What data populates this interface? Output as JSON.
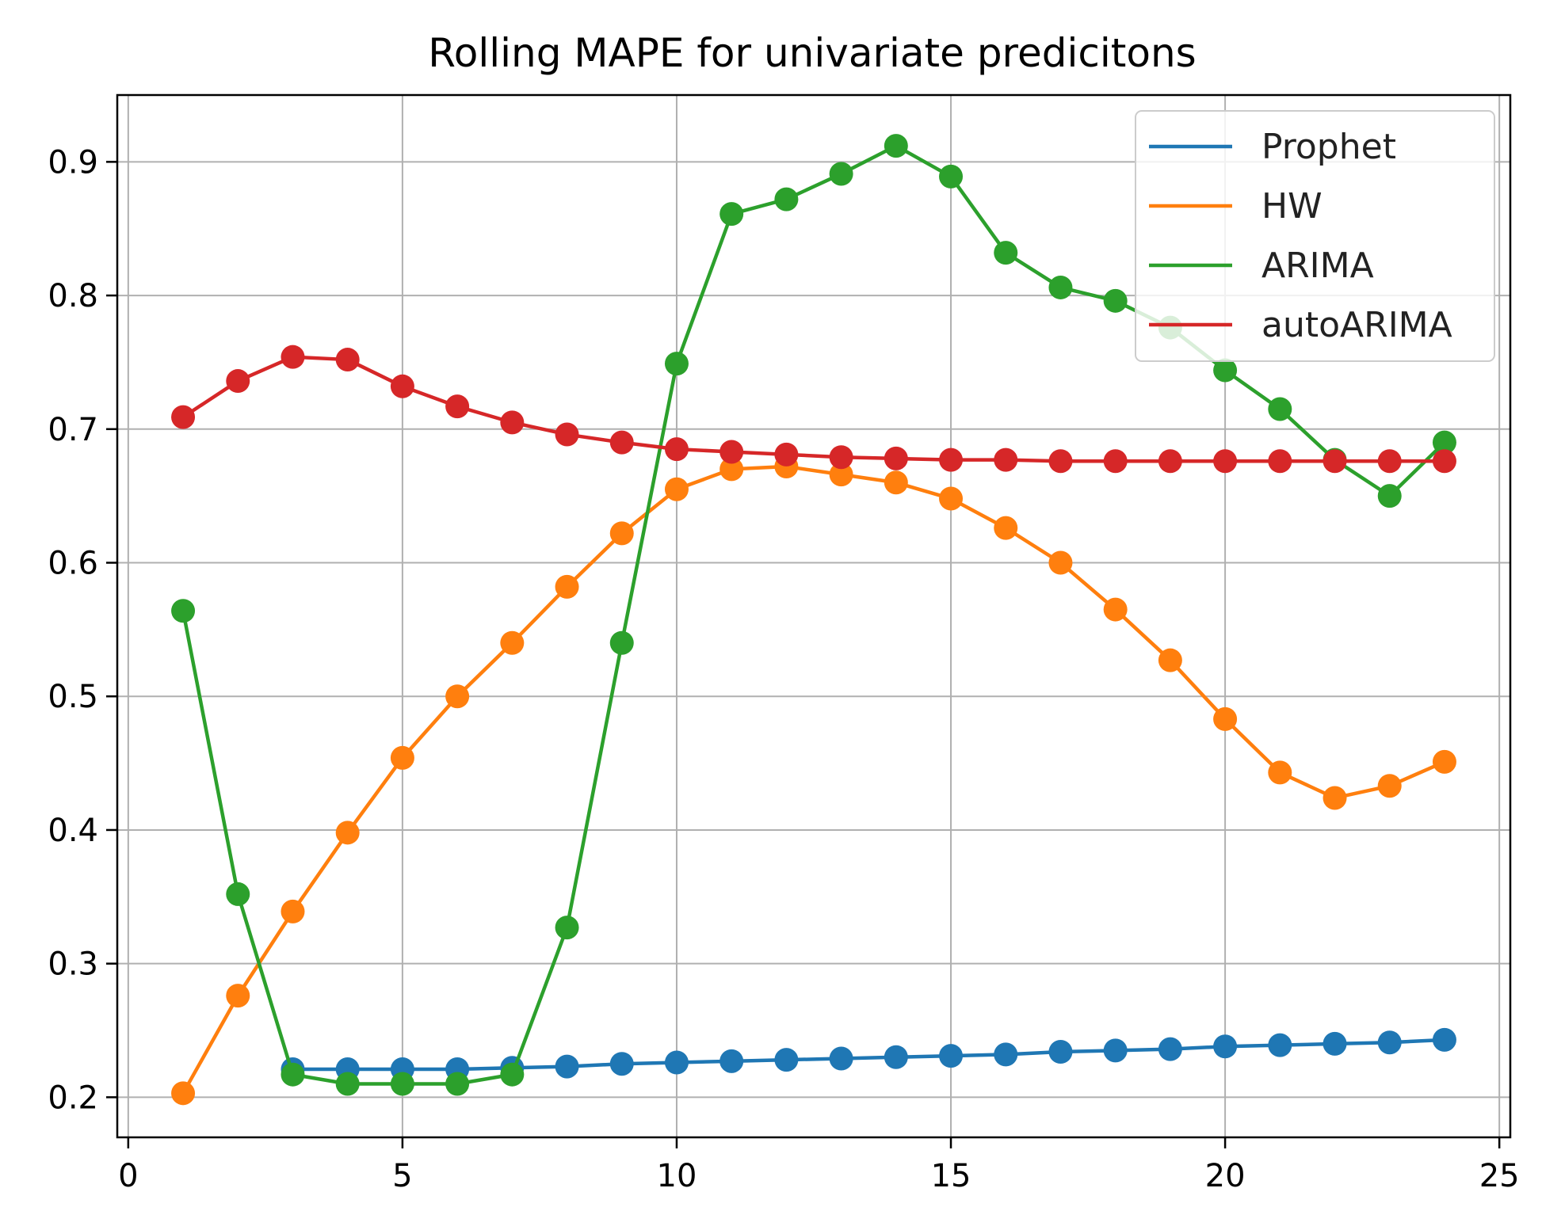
{
  "chart_data": {
    "type": "line",
    "title": "Rolling MAPE for univariate predicitons",
    "xlabel": "",
    "ylabel": "",
    "xlim": [
      -0.2,
      25.2
    ],
    "ylim": [
      0.17,
      0.95
    ],
    "xticks": [
      0,
      5,
      10,
      15,
      20,
      25
    ],
    "xtick_labels": [
      "0",
      "5",
      "10",
      "15",
      "20",
      "25"
    ],
    "yticks": [
      0.2,
      0.3,
      0.4,
      0.5,
      0.6,
      0.7,
      0.8,
      0.9
    ],
    "ytick_labels": [
      "0.2",
      "0.3",
      "0.4",
      "0.5",
      "0.6",
      "0.7",
      "0.8",
      "0.9"
    ],
    "grid": true,
    "legend_position": "top-right",
    "series": [
      {
        "name": "Prophet",
        "color": "#1f77b4",
        "x": [
          3,
          4,
          5,
          6,
          7,
          8,
          9,
          10,
          11,
          12,
          13,
          14,
          15,
          16,
          17,
          18,
          19,
          20,
          21,
          22,
          23,
          24
        ],
        "values": [
          0.221,
          0.221,
          0.221,
          0.221,
          0.222,
          0.223,
          0.225,
          0.226,
          0.227,
          0.228,
          0.229,
          0.23,
          0.231,
          0.232,
          0.234,
          0.235,
          0.236,
          0.238,
          0.239,
          0.24,
          0.241,
          0.243
        ]
      },
      {
        "name": "HW",
        "color": "#ff7f0e",
        "x": [
          1,
          2,
          3,
          4,
          5,
          6,
          7,
          8,
          9,
          10,
          11,
          12,
          13,
          14,
          15,
          16,
          17,
          18,
          19,
          20,
          21,
          22,
          23,
          24
        ],
        "values": [
          0.203,
          0.276,
          0.339,
          0.398,
          0.454,
          0.5,
          0.54,
          0.582,
          0.622,
          0.655,
          0.67,
          0.672,
          0.666,
          0.66,
          0.648,
          0.626,
          0.6,
          0.565,
          0.527,
          0.483,
          0.443,
          0.424,
          0.433,
          0.451
        ]
      },
      {
        "name": "ARIMA",
        "color": "#2ca02c",
        "x": [
          1,
          2,
          3,
          4,
          5,
          6,
          7,
          8,
          9,
          10,
          11,
          12,
          13,
          14,
          15,
          16,
          17,
          18,
          19,
          20,
          21,
          22,
          23,
          24
        ],
        "values": [
          0.564,
          0.352,
          0.217,
          0.21,
          0.21,
          0.21,
          0.217,
          0.327,
          0.54,
          0.749,
          0.861,
          0.872,
          0.891,
          0.912,
          0.889,
          0.832,
          0.806,
          0.796,
          0.776,
          0.744,
          0.715,
          0.677,
          0.65,
          0.69
        ]
      },
      {
        "name": "autoARIMA",
        "color": "#d62728",
        "x": [
          1,
          2,
          3,
          4,
          5,
          6,
          7,
          8,
          9,
          10,
          11,
          12,
          13,
          14,
          15,
          16,
          17,
          18,
          19,
          20,
          21,
          22,
          23,
          24
        ],
        "values": [
          0.709,
          0.736,
          0.754,
          0.752,
          0.732,
          0.717,
          0.705,
          0.696,
          0.69,
          0.685,
          0.683,
          0.681,
          0.679,
          0.678,
          0.677,
          0.677,
          0.676,
          0.676,
          0.676,
          0.676,
          0.676,
          0.676,
          0.676,
          0.676
        ]
      }
    ]
  }
}
